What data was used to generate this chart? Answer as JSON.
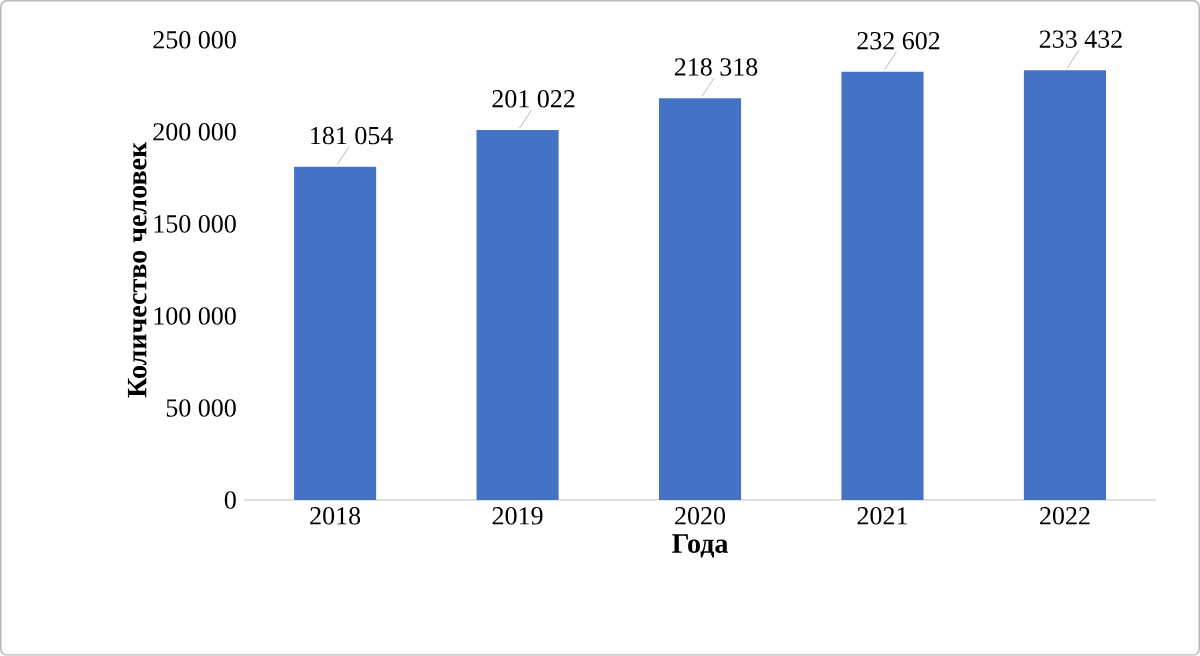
{
  "chart_data": {
    "type": "bar",
    "xlabel": "Года",
    "ylabel": "Количество человек",
    "categories": [
      "2018",
      "2019",
      "2020",
      "2021",
      "2022"
    ],
    "values": [
      181054,
      201022,
      218318,
      232602,
      233432
    ],
    "value_labels": [
      "181 054",
      "201 022",
      "218 318",
      "232 602",
      "233 432"
    ],
    "color": "#4472c4",
    "ylim": [
      0,
      250000
    ],
    "yticks": [
      0,
      {
        "value": 50000,
        "label": "50 000"
      },
      {
        "value": 100000,
        "label": "100 000"
      },
      {
        "value": 150000,
        "label": "150 000"
      },
      {
        "value": 200000,
        "label": "200 000"
      },
      {
        "value": 250000,
        "label": "250 000"
      }
    ]
  }
}
